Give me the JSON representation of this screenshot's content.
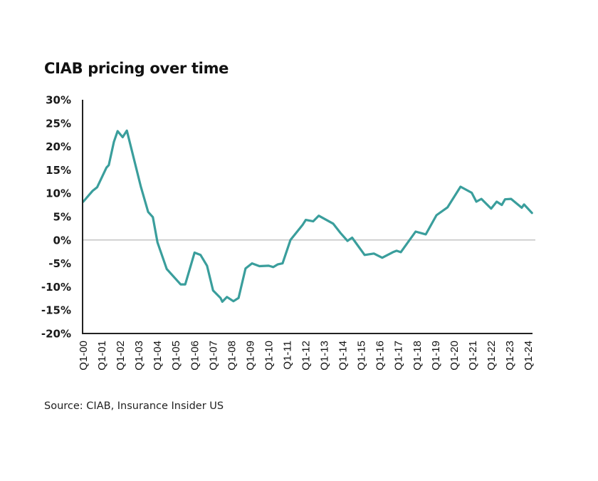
{
  "chart_data": {
    "type": "line",
    "title": "CIAB pricing over time",
    "source": "Source: CIAB, Insurance Insider US",
    "xlabel": "",
    "ylabel": "",
    "ylim": [
      -20,
      30
    ],
    "yticks": [
      30,
      25,
      20,
      15,
      10,
      5,
      0,
      -5,
      -10,
      -15,
      -20
    ],
    "ytick_labels": [
      "30%",
      "25%",
      "20%",
      "15%",
      "10%",
      "5%",
      "0%",
      "-5%",
      "-10%",
      "-15%",
      "-20%"
    ],
    "xtick_labels": [
      "Q1-00",
      "Q1-01",
      "Q1-02",
      "Q1-03",
      "Q1-04",
      "Q1-05",
      "Q1-06",
      "Q1-07",
      "Q1-08",
      "Q1-09",
      "Q1-10",
      "Q1-11",
      "Q1-12",
      "Q1-13",
      "Q1-14",
      "Q1-15",
      "Q1-16",
      "Q1-17",
      "Q1-18",
      "Q1-19",
      "Q1-20",
      "Q1-21",
      "Q1-22",
      "Q1-23",
      "Q1-24"
    ],
    "zero_line": true,
    "grid": false,
    "legend": "none",
    "colors": {
      "line": "#3a9e9c",
      "axis": "#222222",
      "zero_line": "#c4c4c4"
    },
    "series": [
      {
        "name": "CIAB pricing",
        "quarter_index": [
          0,
          2,
          3,
          5,
          5.5,
          6.6,
          7.4,
          8.5,
          9.4,
          12.4,
          14,
          15,
          16,
          18,
          21,
          22,
          24,
          25.3,
          26.7,
          28,
          29.6,
          30,
          31,
          32.4,
          33.5,
          35,
          36.4,
          38,
          40,
          41,
          42,
          43,
          44.7,
          47.3,
          48,
          49.6,
          50.8,
          53.9,
          55.5,
          57,
          58,
          60.7,
          62.7,
          64.5,
          66.8,
          67.6,
          68.5,
          71.7,
          73.9,
          76.2,
          78.6,
          81.4,
          83.8,
          84.8,
          85.9,
          88,
          89.2,
          90.3,
          91,
          92.3,
          94.6,
          95.1,
          96.8
        ],
        "values": [
          8.2,
          10.5,
          11.3,
          15.5,
          16,
          21,
          23.3,
          22,
          23.4,
          11.5,
          6,
          4.9,
          -0.5,
          -6.2,
          -9.5,
          -9.5,
          -2.7,
          -3.2,
          -5.5,
          -10.8,
          -12.4,
          -13.2,
          -12.2,
          -13.1,
          -12.4,
          -6.1,
          -5.0,
          -5.6,
          -5.5,
          -5.8,
          -5.2,
          -5.0,
          0,
          3.2,
          4.3,
          4.0,
          5.2,
          3.5,
          1.5,
          -0.2,
          0.5,
          -3.2,
          -2.9,
          -3.8,
          -2.6,
          -2.3,
          -2.6,
          1.8,
          1.2,
          5.3,
          7.0,
          11.4,
          10.1,
          8.2,
          8.8,
          6.7,
          8.2,
          7.5,
          8.7,
          8.8,
          6.9,
          7.6,
          5.8
        ]
      }
    ]
  }
}
